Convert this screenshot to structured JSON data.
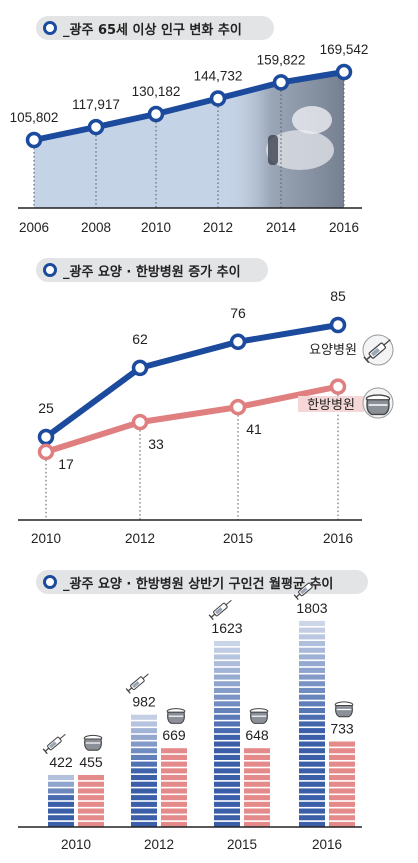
{
  "chart_data": [
    {
      "type": "line",
      "title": "_광주 65세 이상 인구 변화 추이",
      "x": [
        "2006",
        "2008",
        "2010",
        "2012",
        "2014",
        "2016"
      ],
      "series": [
        {
          "name": "",
          "values": [
            105802,
            117917,
            130182,
            144732,
            159822,
            169542
          ]
        }
      ],
      "data_labels": [
        "105,802",
        "117,917",
        "130,182",
        "144,732",
        "159,822",
        "169,542"
      ],
      "fill": "area",
      "colors": {
        "line": "#1c4a9c",
        "area": "#c5d3e6"
      }
    },
    {
      "type": "line",
      "title": "_광주 요양 · 한방병원 증가 추이",
      "x": [
        "2010",
        "2012",
        "2015",
        "2016"
      ],
      "series": [
        {
          "name": "요양병원",
          "values": [
            25,
            62,
            76,
            85
          ],
          "color": "#1c4a9c"
        },
        {
          "name": "한방병원",
          "values": [
            17,
            33,
            41,
            52
          ],
          "color": "#e07f7f"
        }
      ]
    },
    {
      "type": "bar",
      "title": "_광주 요양 · 한방병원 상반기 구인건 월평균 추이",
      "categories": [
        "2010",
        "2012",
        "2015",
        "2016"
      ],
      "series": [
        {
          "name": "",
          "values": [
            422,
            982,
            1623,
            1803
          ],
          "color": "#3a5fa8",
          "icon": "syringe-icon"
        },
        {
          "name": "",
          "values": [
            455,
            669,
            648,
            733
          ],
          "color": "#e58a8a",
          "icon": "herbal-pot-icon"
        }
      ]
    }
  ]
}
